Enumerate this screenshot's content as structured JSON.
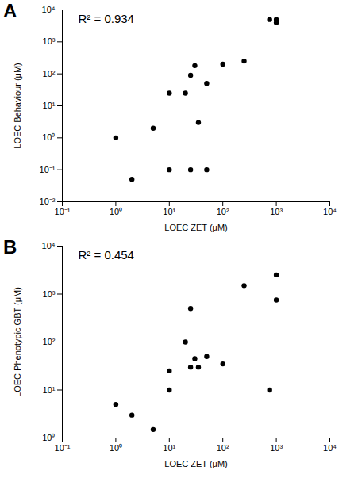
{
  "chart_data": [
    {
      "type": "scatter",
      "title": "A",
      "annotations": [
        "R² = 0.934"
      ],
      "x_label": "LOEC ZET (μM)",
      "y_label": "LOEC Behaviour (μM)",
      "log": true,
      "color": "#000000",
      "marker": "circle",
      "x": [
        1,
        2,
        5,
        10,
        10,
        20,
        25,
        25,
        30,
        35,
        50,
        50,
        100,
        250,
        750,
        1000,
        1000
      ],
      "values": [
        1,
        0.05,
        2,
        25,
        0.1,
        25,
        90,
        0.1,
        180,
        3,
        50,
        0.1,
        200,
        250,
        5000,
        5000,
        4000
      ],
      "xlim": [
        0.1,
        10000
      ],
      "xticks": [
        {
          "value": 0.1,
          "label": "10⁻¹"
        },
        {
          "value": 1,
          "label": "10⁰"
        },
        {
          "value": 10,
          "label": "10¹"
        },
        {
          "value": 100,
          "label": "10²"
        },
        {
          "value": 1000,
          "label": "10³"
        },
        {
          "value": 10000,
          "label": "10⁴"
        }
      ],
      "ylim": [
        0.01,
        10000
      ],
      "yticks": [
        {
          "value": 0.01,
          "label": "10⁻²"
        },
        {
          "value": 0.1,
          "label": "10⁻¹"
        },
        {
          "value": 1,
          "label": "10⁰"
        },
        {
          "value": 10,
          "label": "10¹"
        },
        {
          "value": 100,
          "label": "10²"
        },
        {
          "value": 1000,
          "label": "10³"
        },
        {
          "value": 10000,
          "label": "10⁴"
        }
      ],
      "grid": false
    },
    {
      "type": "scatter",
      "title": "B",
      "annotations": [
        "R² = 0.454"
      ],
      "x_label": "LOEC ZET (μM)",
      "y_label": "LOEC Phenotypic GBT (μM)",
      "log": true,
      "color": "#000000",
      "marker": "circle",
      "x": [
        1,
        2,
        5,
        10,
        10,
        20,
        25,
        25,
        30,
        35,
        50,
        100,
        250,
        750,
        1000,
        1000
      ],
      "values": [
        5,
        3,
        1.5,
        25,
        10,
        100,
        500,
        30,
        45,
        30,
        50,
        35,
        1500,
        10,
        2500,
        750
      ],
      "xlim": [
        0.1,
        10000
      ],
      "xticks": [
        {
          "value": 0.1,
          "label": "10⁻¹"
        },
        {
          "value": 1,
          "label": "10⁰"
        },
        {
          "value": 10,
          "label": "10¹"
        },
        {
          "value": 100,
          "label": "10²"
        },
        {
          "value": 1000,
          "label": "10³"
        },
        {
          "value": 10000,
          "label": "10⁴"
        }
      ],
      "ylim": [
        1,
        10000
      ],
      "yticks": [
        {
          "value": 1,
          "label": "10⁰"
        },
        {
          "value": 10,
          "label": "10¹"
        },
        {
          "value": 100,
          "label": "10²"
        },
        {
          "value": 1000,
          "label": "10³"
        },
        {
          "value": 10000,
          "label": "10⁴"
        }
      ],
      "grid": false
    }
  ]
}
